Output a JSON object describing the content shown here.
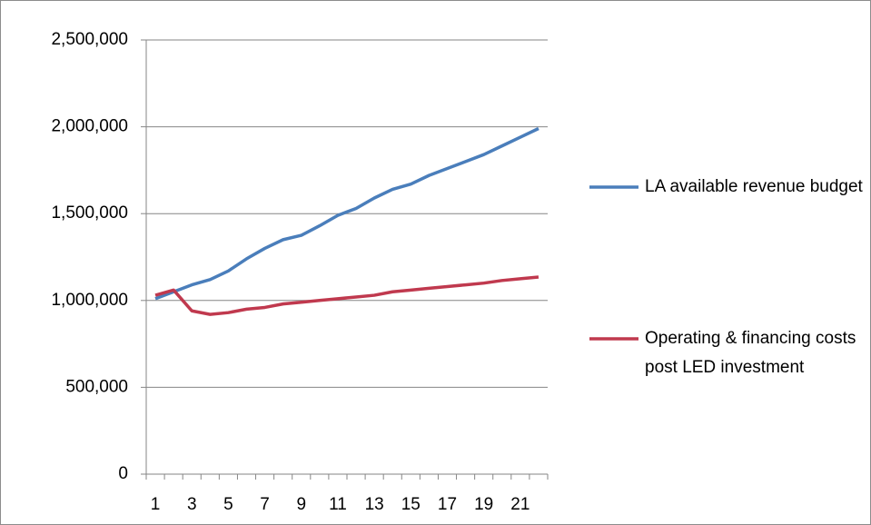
{
  "chart_data": {
    "type": "line",
    "categories": [
      1,
      null,
      3,
      null,
      5,
      null,
      7,
      null,
      9,
      null,
      11,
      null,
      13,
      null,
      15,
      null,
      17,
      null,
      19,
      null,
      21,
      null
    ],
    "series": [
      {
        "name": "LA available revenue budget",
        "color": "#4a7ebb",
        "values": [
          1010000,
          1050000,
          1090000,
          1120000,
          1170000,
          1240000,
          1300000,
          1350000,
          1375000,
          1430000,
          1490000,
          1530000,
          1590000,
          1640000,
          1670000,
          1720000,
          1760000,
          1800000,
          1840000,
          1890000,
          1940000,
          1990000
        ]
      },
      {
        "name": "Operating & financing costs post LED investment",
        "color": "#c0394e",
        "values": [
          1030000,
          1060000,
          940000,
          920000,
          930000,
          950000,
          960000,
          980000,
          990000,
          1000000,
          1010000,
          1020000,
          1030000,
          1050000,
          1060000,
          1070000,
          1080000,
          1090000,
          1100000,
          1115000,
          1125000,
          1135000
        ]
      }
    ],
    "ylim": [
      0,
      2500000
    ],
    "yticks": [
      0,
      {
        "value": 500000,
        "label": "500,000"
      },
      {
        "value": 1000000,
        "label": "1,000,000"
      },
      {
        "value": 1500000,
        "label": "1,500,000"
      },
      {
        "value": 2000000,
        "label": "2,000,000"
      },
      {
        "value": 2500000,
        "label": "2,500,000"
      }
    ],
    "grid": true
  }
}
